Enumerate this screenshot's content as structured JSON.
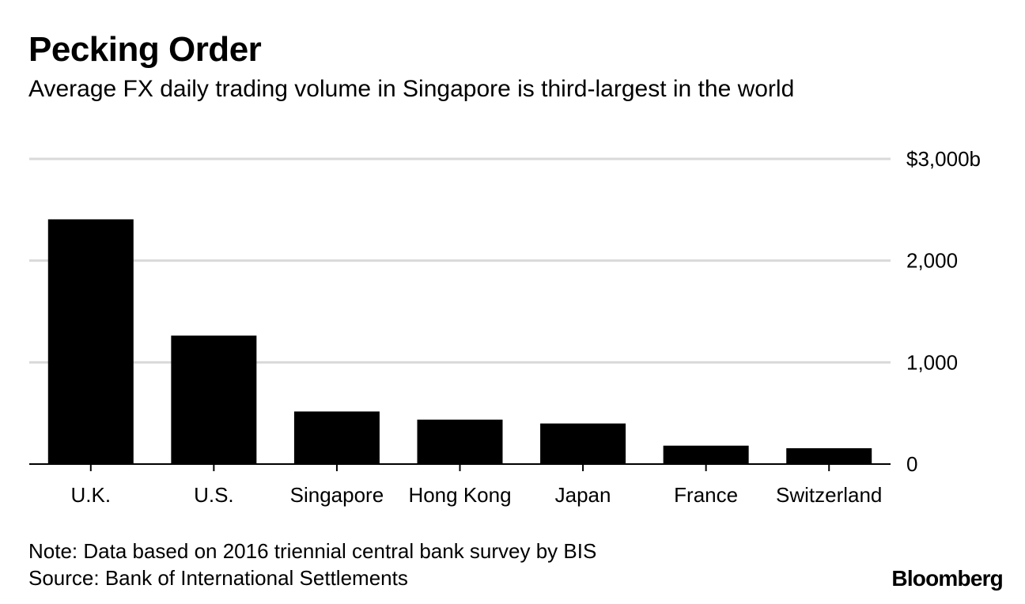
{
  "header": {
    "title": "Pecking Order",
    "subtitle": "Average FX daily trading volume in Singapore is third-largest in the world"
  },
  "footer": {
    "note": "Note: Data based on 2016 triennial central bank survey by BIS",
    "source": "Source: Bank of International Settlements",
    "logo": "Bloomberg"
  },
  "colors": {
    "bar": "#000000",
    "grid": "#d9d9d9",
    "axis": "#000000",
    "background": "#ffffff"
  },
  "chart_data": {
    "type": "bar",
    "title": "Pecking Order",
    "subtitle": "Average FX daily trading volume in Singapore is third-largest in the world",
    "categories": [
      "U.K.",
      "U.S.",
      "Singapore",
      "Hong Kong",
      "Japan",
      "France",
      "Switzerland"
    ],
    "values": [
      2406,
      1263,
      517,
      437,
      399,
      181,
      156
    ],
    "ylim": [
      0,
      3000
    ],
    "yticks": [
      0,
      1000,
      2000,
      3000
    ],
    "ytick_labels": [
      "0",
      "1,000",
      "2,000",
      "$3,000b"
    ],
    "yaxis_side": "right",
    "grid": true,
    "legend": "none",
    "xlabel": "",
    "ylabel": ""
  }
}
